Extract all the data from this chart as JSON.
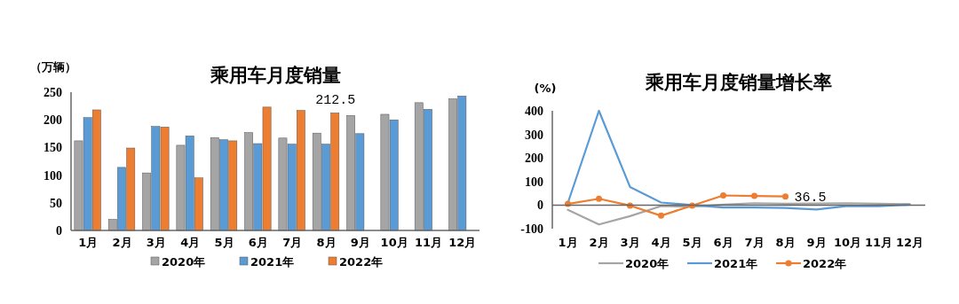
{
  "chart_data": [
    {
      "type": "bar",
      "title": "乘用车月度销量",
      "ylabel": "（万辆）",
      "categories": [
        "1月",
        "2月",
        "3月",
        "4月",
        "5月",
        "6月",
        "7月",
        "8月",
        "9月",
        "10月",
        "11月",
        "12月"
      ],
      "ylim": [
        0,
        250
      ],
      "yticks": [
        0,
        50,
        100,
        150,
        200,
        250
      ],
      "grid": false,
      "legend": "bottom",
      "series": [
        {
          "name": "2020年",
          "color": "#a5a5a5",
          "values": [
            162,
            20,
            104,
            154,
            168,
            177,
            167,
            176,
            208,
            210,
            231,
            238
          ]
        },
        {
          "name": "2021年",
          "color": "#5b9bd5",
          "values": [
            204,
            114,
            188,
            171,
            164,
            157,
            156,
            156,
            175,
            200,
            219,
            243
          ]
        },
        {
          "name": "2022年",
          "color": "#ed7d31",
          "values": [
            218,
            149,
            187,
            95,
            162,
            223,
            217,
            212.5,
            null,
            null,
            null,
            null
          ],
          "value_labels": [
            null,
            null,
            null,
            null,
            null,
            null,
            null,
            "212.5",
            null,
            null,
            null,
            null
          ]
        }
      ]
    },
    {
      "type": "line",
      "title": "乘用车月度销量增长率",
      "ylabel": "(%)",
      "categories": [
        "1月",
        "2月",
        "3月",
        "4月",
        "5月",
        "6月",
        "7月",
        "8月",
        "9月",
        "10月",
        "11月",
        "12月"
      ],
      "ylim": [
        -100,
        400
      ],
      "yticks": [
        -100,
        0,
        100,
        200,
        300,
        400
      ],
      "grid": false,
      "ref_lines": [
        {
          "axis": "y",
          "value": 0,
          "color": "#666666"
        }
      ],
      "legend": "bottom",
      "series": [
        {
          "name": "2020年",
          "color": "#a5a5a5",
          "marker": "none",
          "values": [
            -20,
            -82,
            -47,
            -4,
            -7,
            2,
            8,
            6,
            7,
            8,
            6,
            4
          ]
        },
        {
          "name": "2021年",
          "color": "#5b9bd5",
          "marker": "none",
          "values": [
            9,
            400,
            77,
            11,
            0,
            -10,
            -10,
            -12,
            -19,
            -4,
            -5,
            2
          ]
        },
        {
          "name": "2022年",
          "color": "#ed7d31",
          "marker": "circle",
          "values": [
            5,
            27,
            -2,
            -45,
            -2,
            41,
            39,
            36.5,
            null,
            null,
            null,
            null
          ],
          "value_labels": [
            null,
            null,
            null,
            null,
            null,
            null,
            null,
            "36.5",
            null,
            null,
            null,
            null
          ]
        }
      ]
    }
  ]
}
